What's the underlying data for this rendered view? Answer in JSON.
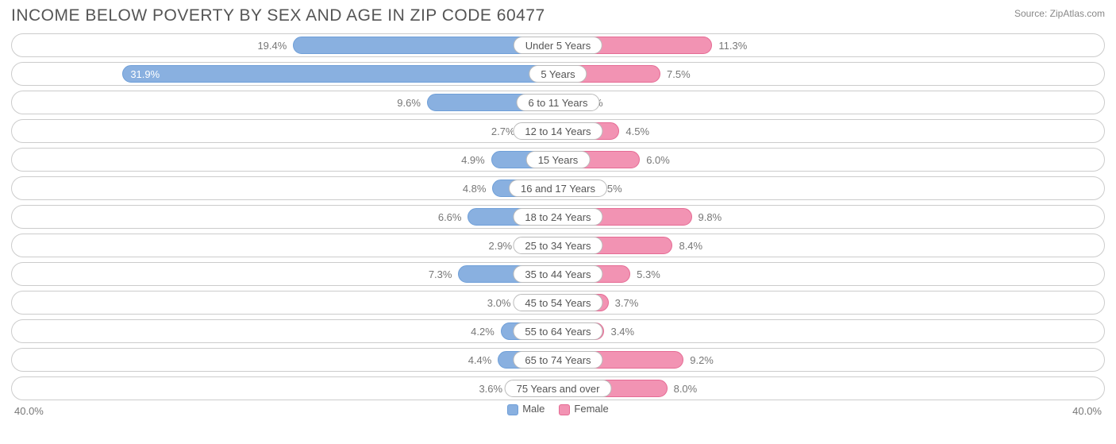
{
  "header": {
    "title": "INCOME BELOW POVERTY BY SEX AND AGE IN ZIP CODE 60477",
    "source": "Source: ZipAtlas.com"
  },
  "chart": {
    "type": "diverging-bar",
    "axis_max": 40.0,
    "axis_label_left": "40.0%",
    "axis_label_right": "40.0%",
    "male_fill": "#89b0e0",
    "male_stroke": "#6f9fd8",
    "female_fill": "#f293b3",
    "female_stroke": "#e56b94",
    "row_border": "#cccccc",
    "bg": "#ffffff",
    "label_color": "#777777",
    "rows": [
      {
        "category": "Under 5 Years",
        "male": 19.4,
        "female": 11.3
      },
      {
        "category": "5 Years",
        "male": 31.9,
        "female": 7.5
      },
      {
        "category": "6 to 11 Years",
        "male": 9.6,
        "female": 1.1
      },
      {
        "category": "12 to 14 Years",
        "male": 2.7,
        "female": 4.5
      },
      {
        "category": "15 Years",
        "male": 4.9,
        "female": 6.0
      },
      {
        "category": "16 and 17 Years",
        "male": 4.8,
        "female": 2.5
      },
      {
        "category": "18 to 24 Years",
        "male": 6.6,
        "female": 9.8
      },
      {
        "category": "25 to 34 Years",
        "male": 2.9,
        "female": 8.4
      },
      {
        "category": "35 to 44 Years",
        "male": 7.3,
        "female": 5.3
      },
      {
        "category": "45 to 54 Years",
        "male": 3.0,
        "female": 3.7
      },
      {
        "category": "55 to 64 Years",
        "male": 4.2,
        "female": 3.4
      },
      {
        "category": "65 to 74 Years",
        "male": 4.4,
        "female": 9.2
      },
      {
        "category": "75 Years and over",
        "male": 3.6,
        "female": 8.0
      }
    ],
    "legend": {
      "male": "Male",
      "female": "Female"
    }
  }
}
